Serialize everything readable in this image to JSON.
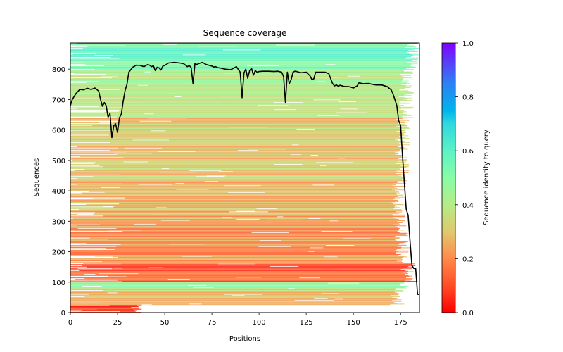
{
  "chart_data": {
    "type": "heatmap",
    "title": "Sequence coverage",
    "xlabel": "Positions",
    "ylabel": "Sequences",
    "xlim": [
      0,
      185
    ],
    "ylim": [
      0,
      886
    ],
    "xticks": [
      0,
      25,
      50,
      75,
      100,
      125,
      150,
      175
    ],
    "xtick_labels": [
      "0",
      "25",
      "50",
      "75",
      "100",
      "125",
      "150",
      "175"
    ],
    "yticks": [
      0,
      100,
      200,
      300,
      400,
      500,
      600,
      700,
      800
    ],
    "ytick_labels": [
      "0",
      "100",
      "200",
      "300",
      "400",
      "500",
      "600",
      "700",
      "800"
    ],
    "grid": false,
    "colorbar": {
      "label": "Sequence identity to query",
      "range": [
        0,
        1
      ],
      "ticks": [
        0.0,
        0.2,
        0.4,
        0.6,
        0.8,
        1.0
      ],
      "tick_labels": [
        "0.0",
        "0.2",
        "0.4",
        "0.6",
        "0.8",
        "1.0"
      ],
      "colormap": "rainbow_r",
      "colors": [
        "#ff0000",
        "#ff7f40",
        "#c0e87a",
        "#7fffd4",
        "#00b4eb",
        "#8000ff"
      ]
    },
    "coverage_line": {
      "name": "coverage",
      "color": "#000000",
      "x": [
        0,
        1,
        3,
        5,
        7,
        9,
        11,
        13,
        15,
        16,
        17,
        18,
        19,
        20,
        21,
        22,
        23,
        24,
        25,
        26,
        27,
        28,
        29,
        30,
        31,
        32,
        33,
        35,
        37,
        39,
        41,
        42,
        43,
        44,
        45,
        46,
        47,
        48,
        49,
        50,
        52,
        55,
        58,
        60,
        62,
        63,
        64,
        65,
        66,
        67,
        68,
        69,
        70,
        72,
        75,
        76,
        77,
        78,
        80,
        82,
        85,
        88,
        90,
        91,
        92,
        93,
        94,
        95,
        96,
        97,
        98,
        99,
        100,
        102,
        105,
        108,
        110,
        112,
        113,
        114,
        115,
        116,
        117,
        118,
        119,
        120,
        122,
        125,
        127,
        128,
        129,
        130,
        132,
        135,
        137,
        138,
        139,
        140,
        141,
        142,
        143,
        145,
        148,
        150,
        152,
        153,
        155,
        158,
        160,
        162,
        165,
        168,
        170,
        171,
        172,
        173,
        174,
        175,
        176,
        177,
        178,
        179,
        180,
        181,
        182,
        183,
        184,
        185
      ],
      "y": [
        680,
        700,
        720,
        733,
        732,
        737,
        733,
        738,
        728,
        700,
        678,
        690,
        680,
        642,
        655,
        575,
        614,
        620,
        592,
        640,
        652,
        695,
        730,
        750,
        790,
        798,
        806,
        813,
        812,
        808,
        815,
        813,
        808,
        811,
        795,
        806,
        804,
        797,
        810,
        812,
        820,
        822,
        820,
        818,
        808,
        812,
        805,
        752,
        818,
        815,
        818,
        820,
        822,
        815,
        810,
        807,
        808,
        805,
        803,
        800,
        798,
        808,
        790,
        706,
        788,
        800,
        770,
        795,
        803,
        780,
        795,
        790,
        792,
        793,
        793,
        792,
        793,
        790,
        775,
        690,
        790,
        752,
        765,
        790,
        793,
        792,
        788,
        790,
        778,
        766,
        768,
        790,
        790,
        790,
        785,
        768,
        752,
        745,
        748,
        744,
        747,
        743,
        742,
        738,
        745,
        755,
        752,
        753,
        750,
        748,
        748,
        742,
        732,
        718,
        700,
        680,
        630,
        615,
        515,
        425,
        340,
        320,
        235,
        155,
        145,
        145,
        60,
        60
      ]
    },
    "row_bands": [
      {
        "from": 0,
        "to": 25,
        "identity": 0.05,
        "coverage_end": 40
      },
      {
        "from": 25,
        "to": 60,
        "identity": 0.25,
        "coverage_end": 177
      },
      {
        "from": 60,
        "to": 80,
        "identity": 0.32,
        "coverage_end": 178
      },
      {
        "from": 80,
        "to": 100,
        "identity": 0.5,
        "coverage_end": 182
      },
      {
        "from": 100,
        "to": 103,
        "identity": 0.95,
        "coverage_end": 185
      },
      {
        "from": 103,
        "to": 160,
        "identity": 0.12,
        "coverage_end": 183
      },
      {
        "from": 160,
        "to": 280,
        "identity": 0.2,
        "coverage_end": 180
      },
      {
        "from": 280,
        "to": 430,
        "identity": 0.26,
        "coverage_end": 178
      },
      {
        "from": 430,
        "to": 640,
        "identity": 0.3,
        "coverage_end": 180
      },
      {
        "from": 640,
        "to": 800,
        "identity": 0.42,
        "coverage_end": 182
      },
      {
        "from": 800,
        "to": 882,
        "identity": 0.55,
        "coverage_end": 185
      },
      {
        "from": 882,
        "to": 886,
        "identity": 0.85,
        "coverage_end": 185
      }
    ]
  }
}
